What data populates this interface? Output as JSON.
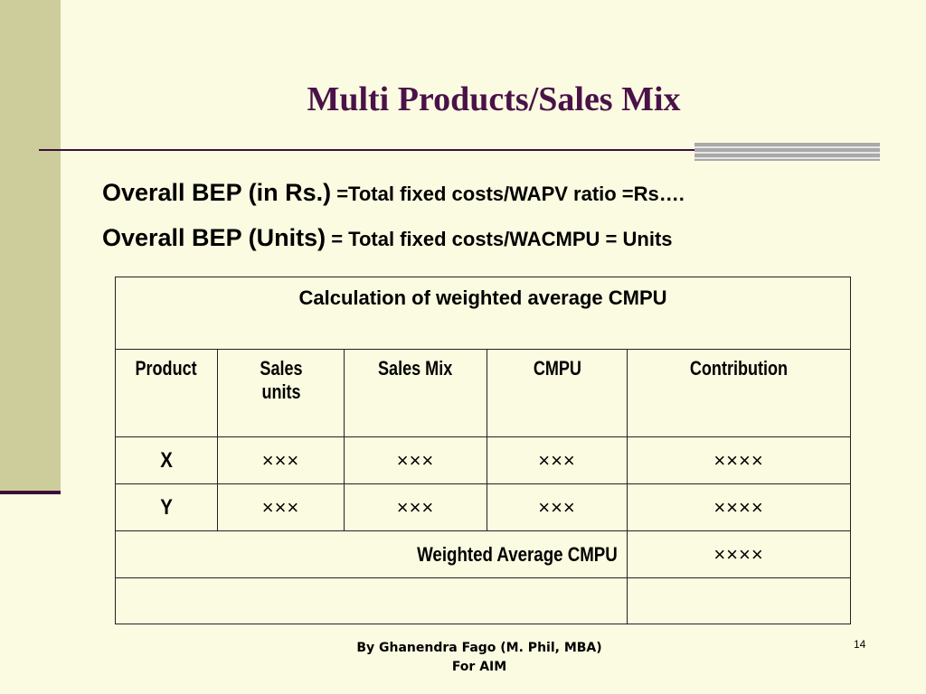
{
  "slide": {
    "title": "Multi Products/Sales Mix",
    "bep_in_rs_lead": "Overall BEP (in Rs.)",
    "bep_in_rs_rest": " =Total fixed costs/WAPV ratio =Rs….",
    "bep_units_lead": "Overall BEP (Units)",
    "bep_units_rest": " = Total fixed costs/WACMPU = Units"
  },
  "table": {
    "caption": "Calculation of weighted average CMPU",
    "headers": [
      "Product",
      "Sales units",
      "Sales Mix",
      "CMPU",
      "Contribution"
    ],
    "rows": [
      {
        "product": "X",
        "sales_units": "×××",
        "sales_mix": "×××",
        "cmpu": "×××",
        "contribution": "××××"
      },
      {
        "product": "Y",
        "sales_units": "×××",
        "sales_mix": "×××",
        "cmpu": "×××",
        "contribution": "××××"
      }
    ],
    "weighted_label": "Weighted Average CMPU",
    "weighted_value": "××××"
  },
  "footer": {
    "line1": "By Ghanendra Fago (M. Phil, MBA)",
    "line2": "For AIM",
    "page_number": "14"
  }
}
